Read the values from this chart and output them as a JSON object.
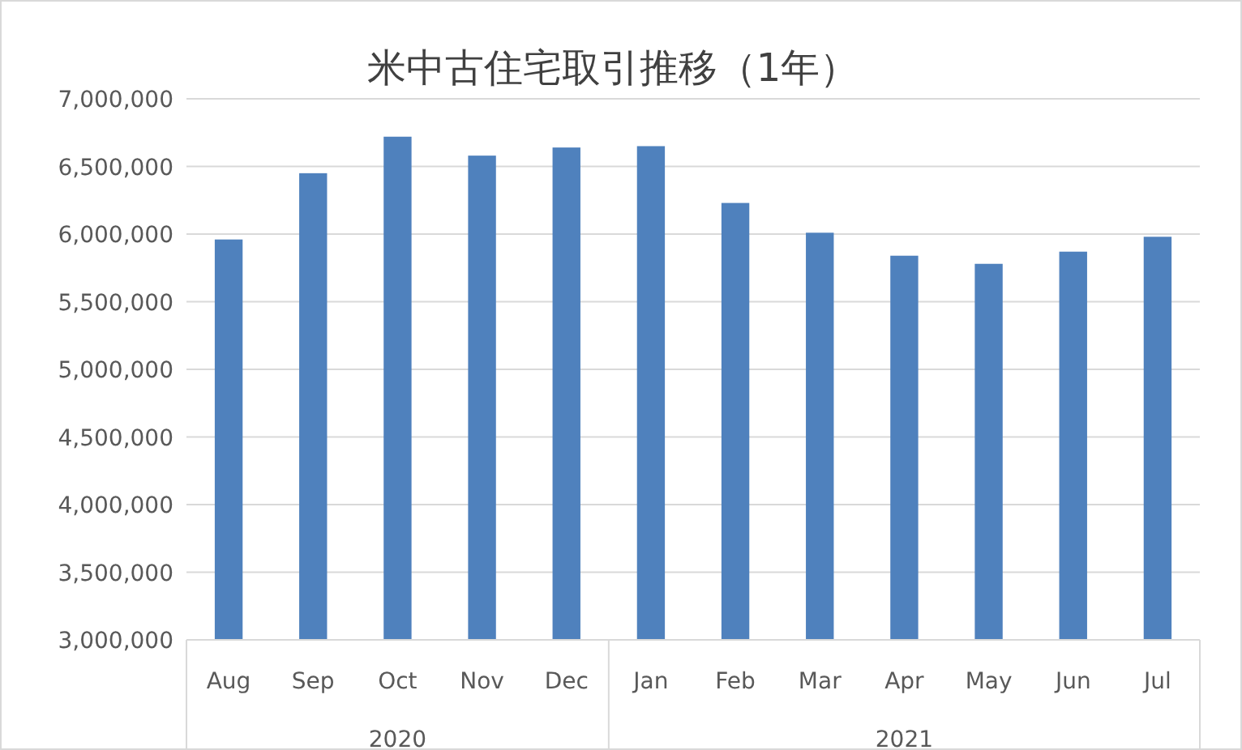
{
  "chart_data": {
    "type": "bar",
    "title": "米中古住宅取引推移（1年）",
    "categories": [
      "Aug",
      "Sep",
      "Oct",
      "Nov",
      "Dec",
      "Jan",
      "Feb",
      "Mar",
      "Apr",
      "May",
      "Jun",
      "Jul"
    ],
    "values": [
      5960000,
      6450000,
      6720000,
      6580000,
      6640000,
      6650000,
      6230000,
      6010000,
      5840000,
      5780000,
      5870000,
      5980000
    ],
    "color": "#4f81bd",
    "ylim": [
      3000000,
      7000000
    ],
    "yticks": [
      {
        "value": 3000000,
        "label": "3,000,000"
      },
      {
        "value": 3500000,
        "label": "3,500,000"
      },
      {
        "value": 4000000,
        "label": "4,000,000"
      },
      {
        "value": 4500000,
        "label": "4,500,000"
      },
      {
        "value": 5000000,
        "label": "5,000,000"
      },
      {
        "value": 5500000,
        "label": "5,500,000"
      },
      {
        "value": 6000000,
        "label": "6,000,000"
      },
      {
        "value": 6500000,
        "label": "6,500,000"
      },
      {
        "value": 7000000,
        "label": "7,000,000"
      }
    ],
    "grid": "y",
    "annotations": [
      "2020",
      "2021"
    ]
  }
}
